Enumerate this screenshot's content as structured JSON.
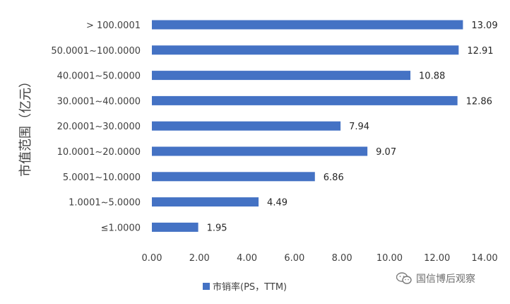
{
  "chart_data": {
    "type": "bar",
    "orientation": "horizontal",
    "categories": [
      "> 100.0001",
      "50.0001~100.0000",
      "40.0001~50.0000",
      "30.0001~40.0000",
      "20.0001~30.0000",
      "10.0001~20.0000",
      "5.0001~10.0000",
      "1.0001~5.0000",
      "≤1.0000"
    ],
    "series": [
      {
        "name": "市销率(PS，TTM)",
        "values": [
          13.09,
          12.91,
          10.88,
          12.86,
          7.94,
          9.07,
          6.86,
          4.49,
          1.95
        ]
      }
    ],
    "ylabel": "市值范围（亿元）",
    "xlim": [
      0,
      14
    ],
    "xticks": [
      "0.00",
      "2.00",
      "4.00",
      "6.00",
      "8.00",
      "10.00",
      "12.00",
      "14.00"
    ],
    "grid": false,
    "legend_position": "bottom",
    "bar_color": "#4472C4"
  },
  "watermark": {
    "text": "国信博后观察",
    "icon": "wechat-icon"
  }
}
